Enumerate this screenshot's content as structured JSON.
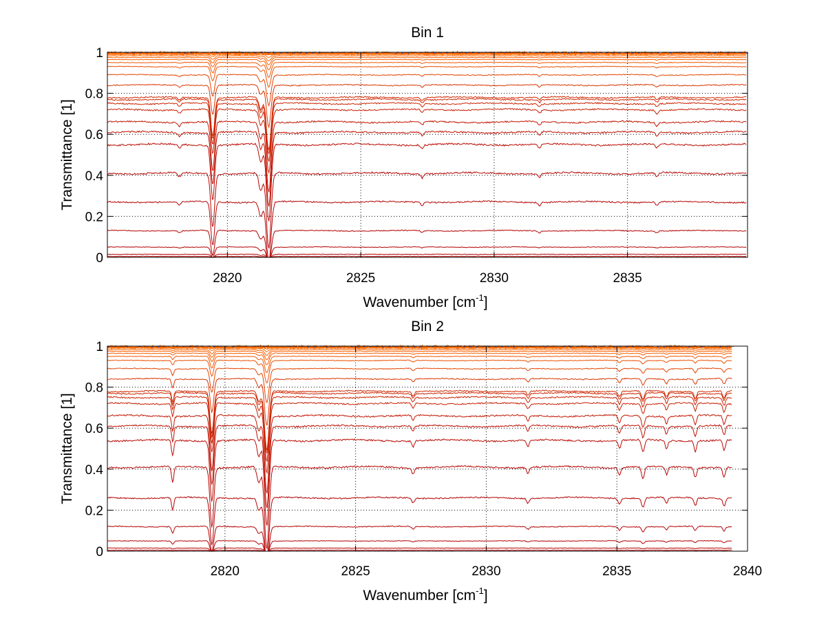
{
  "colors": {
    "curve_low": "#b30000",
    "curve_high": "#ff6a00",
    "noise": "#3050c0",
    "axis": "#000000",
    "grid": "#000000"
  },
  "chart_data": [
    {
      "type": "line",
      "title": "Bin 1",
      "xlabel": "Wavenumber [cm",
      "xlabel_sup": "-1",
      "xlabel_end": "]",
      "ylabel": "Transmittance [1]",
      "xlim": [
        2815.5,
        2839.5
      ],
      "ylim": [
        0,
        1
      ],
      "xticks": [
        2820,
        2825,
        2830,
        2835
      ],
      "yticks": [
        0,
        0.2,
        0.4,
        0.6,
        0.8,
        1
      ],
      "ytick_labels": [
        "0",
        "0.2",
        "0.4",
        "0.6",
        "0.8",
        "1"
      ],
      "grid": true,
      "series_baselines": [
        0.005,
        0.015,
        0.05,
        0.13,
        0.27,
        0.41,
        0.55,
        0.61,
        0.66,
        0.72,
        0.75,
        0.77,
        0.78,
        0.84,
        0.89,
        0.93,
        0.95,
        0.965,
        0.975,
        0.983,
        0.99,
        0.995
      ],
      "absorption_lines": [
        {
          "x": 2819.45,
          "width": 0.1,
          "depth": 0.27
        },
        {
          "x": 2821.55,
          "width": 0.12,
          "depth": 0.38
        },
        {
          "x": 2821.25,
          "width": 0.1,
          "depth": 0.09
        },
        {
          "x": 2818.2,
          "width": 0.08,
          "depth": 0.02
        },
        {
          "x": 2827.3,
          "width": 0.07,
          "depth": 0.02
        },
        {
          "x": 2831.7,
          "width": 0.07,
          "depth": 0.02
        },
        {
          "x": 2836.1,
          "width": 0.07,
          "depth": 0.02
        }
      ]
    },
    {
      "type": "line",
      "title": "Bin 2",
      "xlabel": "Wavenumber [cm",
      "xlabel_sup": "-1",
      "xlabel_end": "]",
      "ylabel": "Transmittance [1]",
      "xlim": [
        2815.5,
        2840
      ],
      "ylim": [
        0,
        1
      ],
      "xticks": [
        2820,
        2825,
        2830,
        2835,
        2840
      ],
      "yticks": [
        0,
        0.2,
        0.4,
        0.6,
        0.8,
        1
      ],
      "ytick_labels": [
        "0",
        "0.2",
        "0.4",
        "0.6",
        "0.8",
        "1"
      ],
      "grid": true,
      "series_baselines": [
        0.005,
        0.015,
        0.05,
        0.12,
        0.26,
        0.41,
        0.54,
        0.61,
        0.66,
        0.72,
        0.75,
        0.77,
        0.78,
        0.84,
        0.89,
        0.93,
        0.95,
        0.965,
        0.975,
        0.983,
        0.99,
        0.995
      ],
      "absorption_lines": [
        {
          "x": 2818.0,
          "width": 0.06,
          "depth": 0.08
        },
        {
          "x": 2819.5,
          "width": 0.1,
          "depth": 0.3
        },
        {
          "x": 2821.6,
          "width": 0.12,
          "depth": 0.42
        },
        {
          "x": 2821.3,
          "width": 0.1,
          "depth": 0.08
        },
        {
          "x": 2827.2,
          "width": 0.07,
          "depth": 0.03
        },
        {
          "x": 2831.6,
          "width": 0.07,
          "depth": 0.03
        },
        {
          "x": 2835.1,
          "width": 0.07,
          "depth": 0.04
        },
        {
          "x": 2836.0,
          "width": 0.08,
          "depth": 0.06
        },
        {
          "x": 2836.9,
          "width": 0.07,
          "depth": 0.04
        },
        {
          "x": 2838.0,
          "width": 0.07,
          "depth": 0.05
        },
        {
          "x": 2839.1,
          "width": 0.07,
          "depth": 0.05
        }
      ]
    }
  ]
}
